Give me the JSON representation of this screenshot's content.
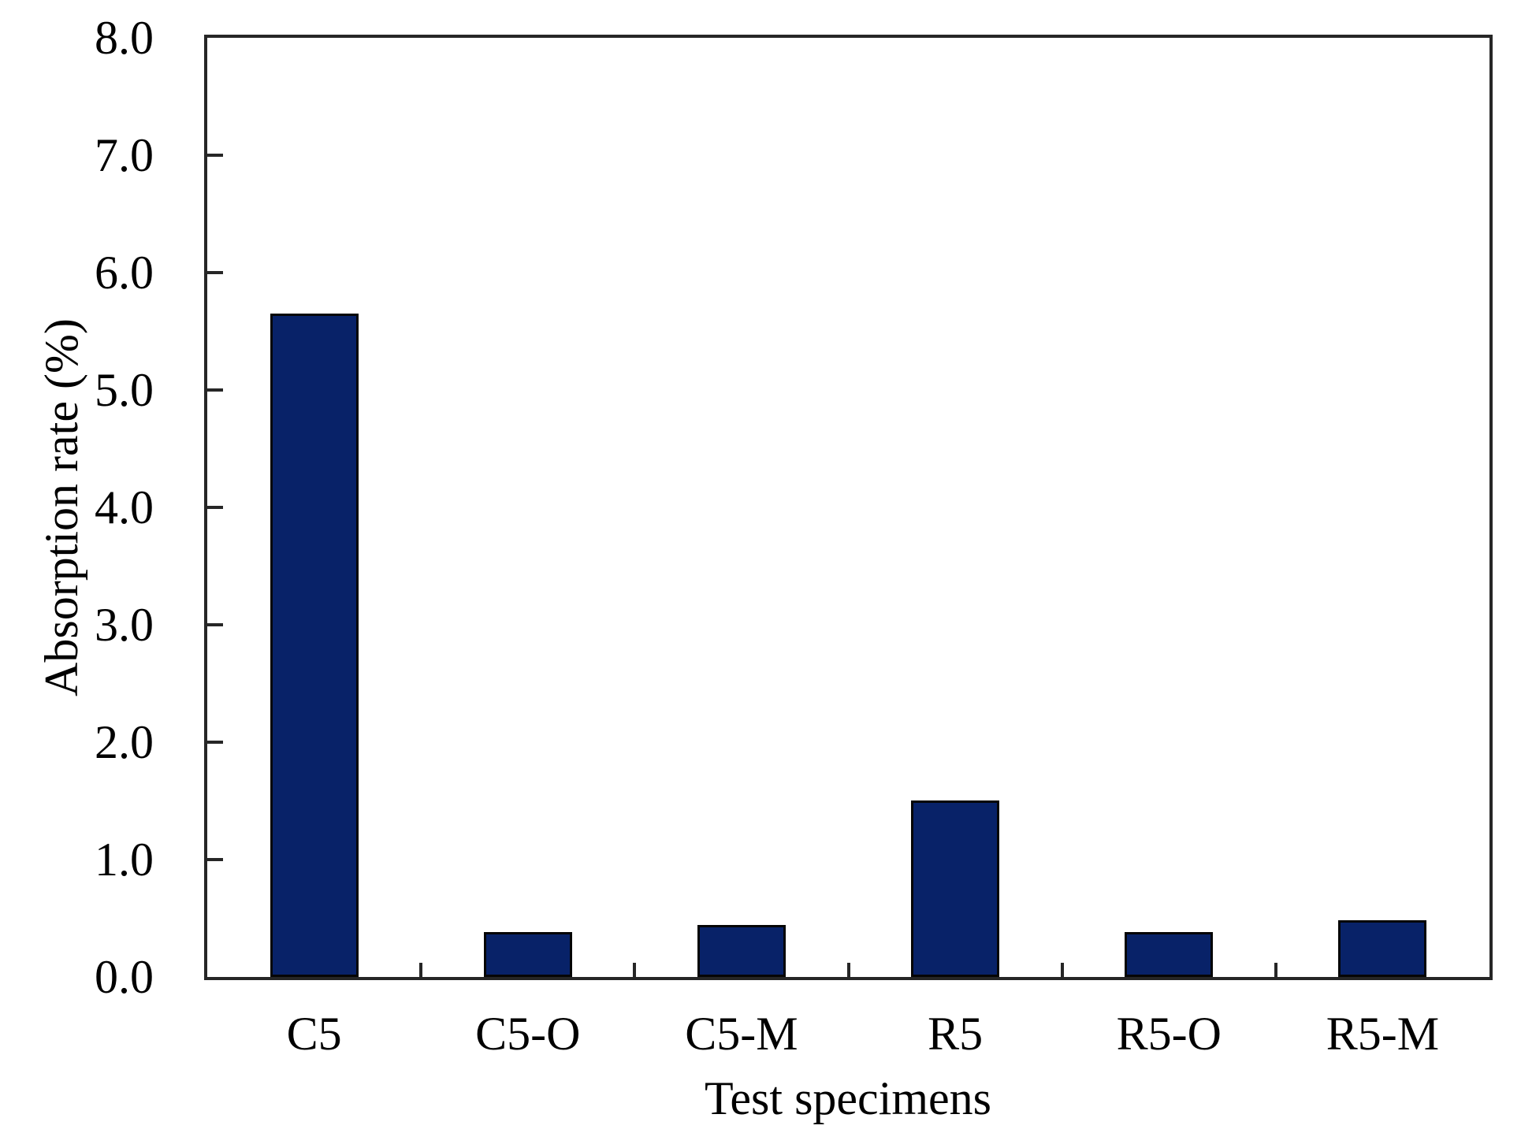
{
  "chart_data": {
    "type": "bar",
    "title": "",
    "categories": [
      "C5",
      "C5-O",
      "C5-M",
      "R5",
      "R5-O",
      "R5-M"
    ],
    "values": [
      5.65,
      0.38,
      0.44,
      1.5,
      0.38,
      0.48
    ],
    "xlabel": "Test specimens",
    "ylabel": "Absorption rate (%)",
    "ylim": [
      0,
      8
    ],
    "ytick_step": 1.0,
    "ytick_labels": [
      "0.0",
      "1.0",
      "2.0",
      "3.0",
      "4.0",
      "5.0",
      "6.0",
      "7.0",
      "8.0"
    ],
    "grid": false,
    "legend": null,
    "bar_color": "#082268",
    "bar_border_color": "#050505",
    "axis_color": "#262626",
    "text_color": "#000000",
    "background": "#ffffff"
  }
}
